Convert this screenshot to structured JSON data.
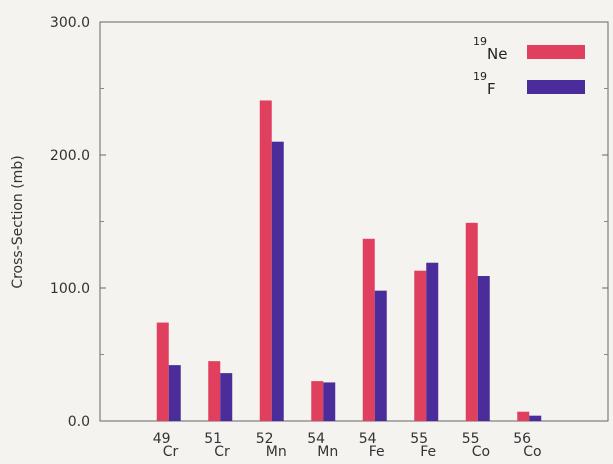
{
  "chart_data": {
    "type": "bar",
    "title": "",
    "xlabel": "",
    "ylabel": "Cross-Section (mb)",
    "ylim": [
      0,
      300
    ],
    "yticks": [
      "0.0",
      "100.0",
      "200.0",
      "300.0"
    ],
    "categories": [
      {
        "mass": "49",
        "element": "Cr"
      },
      {
        "mass": "51",
        "element": "Cr"
      },
      {
        "mass": "52",
        "element": "Mn"
      },
      {
        "mass": "54",
        "element": "Mn"
      },
      {
        "mass": "54",
        "element": "Fe"
      },
      {
        "mass": "55",
        "element": "Fe"
      },
      {
        "mass": "55",
        "element": "Co"
      },
      {
        "mass": "56",
        "element": "Co"
      }
    ],
    "series": [
      {
        "name": "19Ne",
        "mass": "19",
        "symbol": "Ne",
        "color": "#e0405e",
        "values": [
          74,
          45,
          241,
          30,
          137,
          113,
          149,
          7
        ]
      },
      {
        "name": "19F",
        "mass": "19",
        "symbol": "F",
        "color": "#4a2c9a",
        "values": [
          42,
          36,
          210,
          29,
          98,
          119,
          109,
          4
        ]
      }
    ],
    "legend": "top-right",
    "grid": false
  }
}
